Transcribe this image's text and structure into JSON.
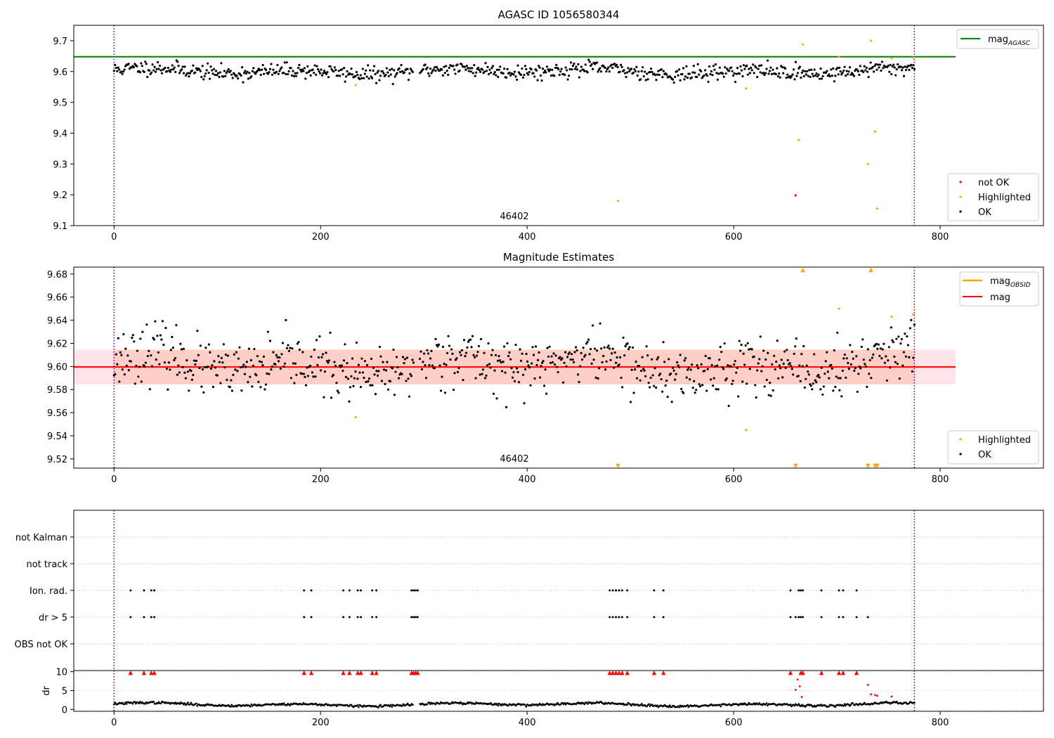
{
  "chart_data": [
    {
      "type": "scatter",
      "title": "AGASC ID 1056580344",
      "xlim": [
        -39,
        900
      ],
      "ylim": [
        9.1,
        9.75
      ],
      "xticks": [
        0,
        200,
        400,
        600,
        800
      ],
      "yticks": [
        9.1,
        9.2,
        9.3,
        9.4,
        9.5,
        9.6,
        9.7
      ],
      "vlines": [
        0,
        775
      ],
      "hline": {
        "name": "mag_AGASC",
        "value": 9.648,
        "x_end": 815,
        "color": "#008000"
      },
      "annotation": {
        "text": "46402",
        "x": 387,
        "y": 9.12
      },
      "legends": [
        {
          "position": "top-right",
          "entries": [
            {
              "label": "mag",
              "sub": "AGASC",
              "kind": "line",
              "color": "#008000"
            }
          ]
        },
        {
          "position": "bottom-right",
          "entries": [
            {
              "label": "not OK",
              "kind": "marker",
              "color": "#ff0000"
            },
            {
              "label": "Highlighted",
              "kind": "marker",
              "color": "#ffa500"
            },
            {
              "label": "OK",
              "kind": "marker",
              "color": "#000000"
            }
          ]
        }
      ],
      "series": [
        {
          "name": "OK",
          "color": "#000000",
          "generated": {
            "x_range": [
              0,
              775
            ],
            "count": 770,
            "mean": 9.601,
            "wave": 0.012,
            "noise": 0.012,
            "gap": [
              290,
              296
            ]
          }
        },
        {
          "name": "Highlighted",
          "color": "#ffa500",
          "points": [
            [
              234,
              9.556
            ],
            [
              488,
              9.18
            ],
            [
              612,
              9.545
            ],
            [
              663,
              9.378
            ],
            [
              667,
              9.688
            ],
            [
              702,
              9.648
            ],
            [
              730,
              9.3
            ],
            [
              733,
              9.7
            ],
            [
              737,
              9.405
            ],
            [
              739,
              9.155
            ],
            [
              753,
              9.643
            ],
            [
              774,
              9.645
            ]
          ]
        },
        {
          "name": "not OK",
          "color": "#ff0000",
          "points": [
            [
              660,
              9.198
            ]
          ]
        }
      ]
    },
    {
      "type": "scatter",
      "title": "Magnitude Estimates",
      "xlim": [
        -39,
        900
      ],
      "ylim": [
        9.512,
        9.686
      ],
      "xticks": [
        0,
        200,
        400,
        600,
        800
      ],
      "yticks": [
        9.52,
        9.54,
        9.56,
        9.58,
        9.6,
        9.62,
        9.64,
        9.66,
        9.68
      ],
      "vlines": [
        0,
        775
      ],
      "mag_line": {
        "name": "mag",
        "value": 9.5995,
        "x_end": 815,
        "color": "#ff0000"
      },
      "bands": [
        {
          "lo": 9.5845,
          "hi": 9.6145,
          "x_start": -39,
          "x_end": 815,
          "color": "#ffc0cb",
          "opacity": 0.45
        },
        {
          "lo": 9.5845,
          "hi": 9.6145,
          "x_start": 0,
          "x_end": 775,
          "color": "#ffa07a",
          "opacity": 0.3
        }
      ],
      "annotation": {
        "text": "46402",
        "x": 387,
        "y": 9.516
      },
      "legends": [
        {
          "position": "top-right",
          "entries": [
            {
              "label": "mag",
              "sub": "OBSID",
              "kind": "line",
              "color": "#ffa500"
            },
            {
              "label": "mag",
              "kind": "line",
              "color": "#ff0000"
            }
          ]
        },
        {
          "position": "bottom-right",
          "entries": [
            {
              "label": "Highlighted",
              "kind": "marker",
              "color": "#ffa500"
            },
            {
              "label": "OK",
              "kind": "marker",
              "color": "#000000"
            }
          ]
        }
      ],
      "series": [
        {
          "name": "OK",
          "color": "#000000",
          "generated": {
            "x_range": [
              0,
              775
            ],
            "count": 760,
            "mean": 9.601,
            "wave": 0.012,
            "noise": 0.012,
            "gap": [
              290,
              296
            ]
          }
        },
        {
          "name": "Highlighted",
          "color": "#ffa500",
          "points": [
            [
              234,
              9.556
            ],
            [
              612,
              9.545
            ],
            [
              702,
              9.65
            ],
            [
              753,
              9.643
            ],
            [
              774,
              9.645
            ]
          ]
        },
        {
          "name": "Highlighted (above range)",
          "color": "#ffa500",
          "marker": "triangle-up",
          "x": [
            667,
            733
          ]
        },
        {
          "name": "Highlighted (below range)",
          "color": "#ffa500",
          "marker": "triangle-down",
          "x": [
            488,
            660,
            730,
            737,
            739
          ]
        }
      ]
    },
    {
      "type": "scatter",
      "categories": [
        "not Kalman",
        "not track",
        "Ion. rad.",
        "dr > 5",
        "OBS not OK"
      ],
      "xlim": [
        -39,
        900
      ],
      "vlines": [
        0,
        775
      ],
      "flags": {
        "Ion. rad.": [
          16,
          29,
          36,
          39,
          184,
          191,
          222,
          228,
          236,
          239,
          250,
          254,
          288,
          290,
          292,
          294,
          480,
          483,
          486,
          489,
          492,
          497,
          523,
          532,
          655,
          663,
          665,
          667,
          685,
          702,
          706,
          719
        ],
        "dr > 5": [
          16,
          29,
          36,
          39,
          184,
          191,
          222,
          228,
          236,
          239,
          250,
          254,
          288,
          290,
          292,
          294,
          480,
          483,
          486,
          489,
          492,
          497,
          523,
          532,
          655,
          660,
          663,
          665,
          667,
          685,
          702,
          706,
          719,
          730
        ]
      }
    },
    {
      "type": "scatter",
      "ylabel": "dr",
      "xlim": [
        -39,
        900
      ],
      "ylim": [
        -0.5,
        10.3
      ],
      "xticks": [
        0,
        200,
        400,
        600,
        800
      ],
      "yticks": [
        0,
        5,
        10
      ],
      "vlines": [
        0,
        775
      ],
      "series": [
        {
          "name": "OK",
          "color": "#000000",
          "generated": {
            "x_range": [
              0,
              775
            ],
            "count": 770,
            "mean": 1.3,
            "wave": 0.5,
            "noise": 0.15,
            "gap": [
              290,
              296
            ]
          }
        },
        {
          "name": "dr clipped",
          "color": "#ff0000",
          "marker": "triangle-up",
          "x": [
            16,
            29,
            36,
            39,
            184,
            191,
            222,
            228,
            236,
            239,
            250,
            254,
            288,
            290,
            292,
            294,
            480,
            483,
            486,
            489,
            492,
            497,
            523,
            532,
            655,
            665,
            667,
            685,
            702,
            706,
            719
          ]
        },
        {
          "name": "not OK",
          "color": "#ff0000",
          "points": [
            [
              660,
              5.2
            ],
            [
              662,
              7.9
            ],
            [
              664,
              6.1
            ],
            [
              666,
              3.3
            ],
            [
              730,
              6.5
            ],
            [
              733,
              4.0
            ],
            [
              737,
              3.8
            ],
            [
              739,
              3.6
            ],
            [
              753,
              3.4
            ]
          ]
        }
      ]
    }
  ]
}
